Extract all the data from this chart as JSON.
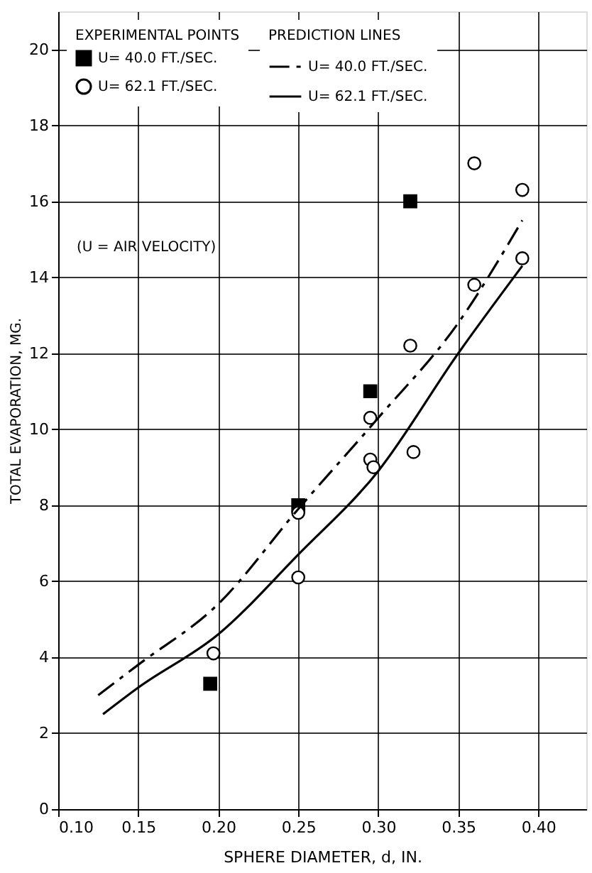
{
  "chart_data": {
    "type": "scatter",
    "xlabel": "SPHERE DIAMETER, d, IN.",
    "ylabel": "TOTAL EVAPORATION, MG.",
    "xlim": [
      0.1,
      0.43
    ],
    "xticks": [
      {
        "value": 0.1,
        "label": "0.10"
      },
      0.15,
      {
        "value": 0.2,
        "label": "0.20"
      },
      0.25,
      {
        "value": 0.3,
        "label": "0.30"
      },
      0.35,
      {
        "value": 0.4,
        "label": "0.40"
      }
    ],
    "ylim": [
      0,
      21
    ],
    "yticks": [
      0,
      2,
      4,
      6,
      8,
      10,
      12,
      14,
      16,
      18,
      20
    ],
    "grid": true,
    "legend": "top left",
    "annotations": [
      "EXPERIMENTAL POINTS",
      "PREDICTION LINES",
      "(U = AIR VELOCITY)"
    ],
    "series": [
      {
        "name": "U= 40.0 FT./SEC.",
        "type": "scatter",
        "marker": "square",
        "color": "#000000",
        "x": [
          0.195,
          0.25,
          0.295,
          0.32
        ],
        "values": [
          3.3,
          8.0,
          11.0,
          16.0
        ]
      },
      {
        "name": "U= 62.1 FT./SEC.",
        "type": "scatter",
        "marker": "circle",
        "color": "#000000",
        "x": [
          0.197,
          0.25,
          0.25,
          0.295,
          0.295,
          0.297,
          0.32,
          0.322,
          0.36,
          0.36,
          0.39,
          0.39
        ],
        "values": [
          4.1,
          7.8,
          6.1,
          10.3,
          9.2,
          9.0,
          12.2,
          9.4,
          17.0,
          13.8,
          16.3,
          14.5
        ]
      },
      {
        "name": "U= 40.0 FT./SEC.",
        "type": "line",
        "line_style": "dashed",
        "color": "#000000",
        "x": [
          0.125,
          0.15,
          0.2,
          0.25,
          0.3,
          0.35,
          0.39
        ],
        "values": [
          3.0,
          3.8,
          5.4,
          7.9,
          10.3,
          12.8,
          15.5
        ]
      },
      {
        "name": "U= 62.1 FT./SEC.",
        "type": "line",
        "line_style": "solid",
        "color": "#000000",
        "x": [
          0.128,
          0.15,
          0.2,
          0.25,
          0.3,
          0.35,
          0.39
        ],
        "values": [
          2.5,
          3.2,
          4.6,
          6.7,
          8.9,
          12.0,
          14.3
        ]
      }
    ]
  }
}
